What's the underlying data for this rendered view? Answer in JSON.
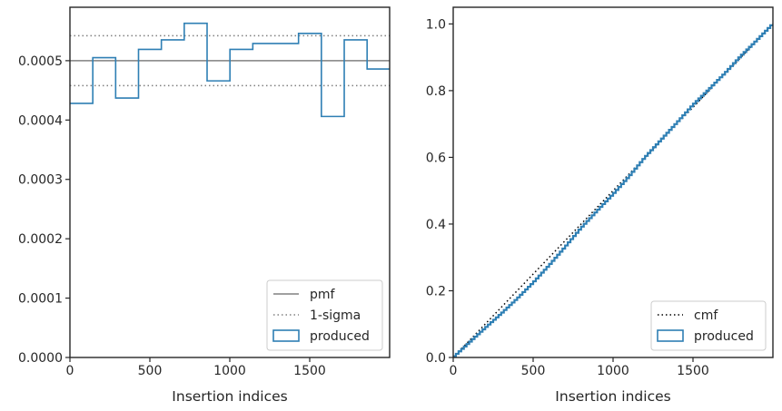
{
  "chart_data": [
    {
      "type": "line",
      "chart_subtype": "step-histogram",
      "xlabel": "Insertion indices",
      "ylabel": "",
      "xlim": [
        0,
        2000
      ],
      "ylim": [
        0,
        0.00059
      ],
      "xticks": [
        0,
        500,
        1000,
        1500
      ],
      "xtick_labels": [
        "0",
        "500",
        "1000",
        "1500"
      ],
      "yticks": [
        0,
        0.0001,
        0.0002,
        0.0003,
        0.0004,
        0.0005
      ],
      "ytick_labels": [
        "0.0000",
        "0.0001",
        "0.0002",
        "0.0003",
        "0.0004",
        "0.0005"
      ],
      "grid": false,
      "legend_position": "lower right",
      "reference_lines": [
        {
          "name": "pmf",
          "y": 0.0005,
          "style": "solid",
          "color": "#808080"
        },
        {
          "name": "1-sigma",
          "y": 0.000542,
          "style": "dotted",
          "color": "#808080"
        },
        {
          "name": "1-sigma",
          "y": 0.000458,
          "style": "dotted",
          "color": "#808080"
        }
      ],
      "series": [
        {
          "name": "produced",
          "color": "#2e7fb4",
          "bin_edges": [
            0,
            143,
            286,
            429,
            572,
            715,
            858,
            1001,
            1144,
            1287,
            1430,
            1573,
            1716,
            1859,
            2000
          ],
          "values": [
            0.000428,
            0.000505,
            0.000437,
            0.000519,
            0.000535,
            0.000563,
            0.000466,
            0.000519,
            0.000529,
            0.000529,
            0.000546,
            0.000406,
            0.000535,
            0.000486
          ]
        }
      ],
      "legend": [
        {
          "label": "pmf",
          "kind": "solid-line",
          "color": "#808080"
        },
        {
          "label": "1-sigma",
          "kind": "dotted-line",
          "color": "#808080"
        },
        {
          "label": "produced",
          "kind": "box",
          "color": "#2e7fb4"
        }
      ]
    },
    {
      "type": "line",
      "xlabel": "Insertion indices",
      "ylabel": "",
      "xlim": [
        0,
        2000
      ],
      "ylim": [
        0,
        1.05
      ],
      "xticks": [
        0,
        500,
        1000,
        1500
      ],
      "xtick_labels": [
        "0",
        "500",
        "1000",
        "1500"
      ],
      "yticks": [
        0,
        0.2,
        0.4,
        0.6,
        0.8,
        1.0
      ],
      "ytick_labels": [
        "0.0",
        "0.2",
        "0.4",
        "0.6",
        "0.8",
        "1.0"
      ],
      "grid": false,
      "legend_position": "lower right",
      "series": [
        {
          "name": "cmf",
          "style": "dotted",
          "color": "#000000",
          "x": [
            0,
            2000
          ],
          "y": [
            0,
            1.0
          ]
        },
        {
          "name": "produced",
          "style": "step",
          "color": "#2e7fb4",
          "x": [
            0,
            100,
            200,
            300,
            400,
            500,
            600,
            700,
            800,
            900,
            1000,
            1100,
            1200,
            1300,
            1400,
            1500,
            1600,
            1700,
            1800,
            1900,
            2000
          ],
          "y": [
            0,
            0.044,
            0.088,
            0.131,
            0.176,
            0.224,
            0.276,
            0.331,
            0.388,
            0.439,
            0.489,
            0.542,
            0.6,
            0.652,
            0.704,
            0.757,
            0.804,
            0.852,
            0.904,
            0.951,
            1.0
          ]
        }
      ],
      "legend": [
        {
          "label": "cmf",
          "kind": "dotted-line",
          "color": "#000000"
        },
        {
          "label": "produced",
          "kind": "box",
          "color": "#2e7fb4"
        }
      ]
    }
  ]
}
